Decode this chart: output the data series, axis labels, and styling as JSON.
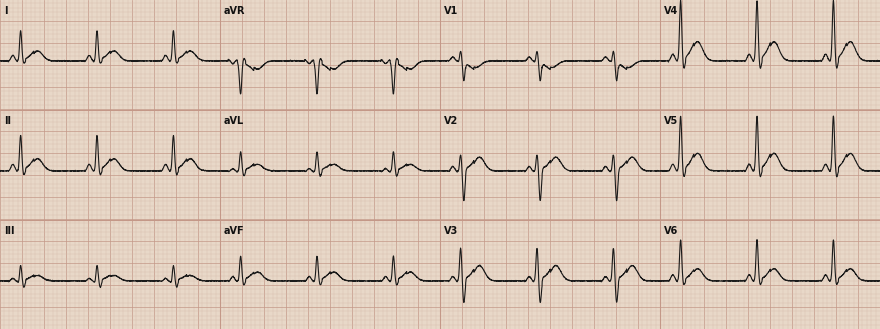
{
  "bg_color": "#e8d8c8",
  "grid_minor_color": "#d4b8a8",
  "grid_major_color": "#c49888",
  "line_color": "#1a1a1a",
  "line_width": 0.8,
  "label_fontsize": 7,
  "label_color": "#111111",
  "fig_width": 8.8,
  "fig_height": 3.29,
  "dpi": 100,
  "heart_rate": 72,
  "fs": 500,
  "n_cols": 4,
  "n_rows": 3,
  "lead_labels": [
    "I",
    "aVR",
    "V1",
    "V4",
    "II",
    "aVL",
    "V2",
    "V5",
    "III",
    "aVF",
    "V3",
    "V6"
  ],
  "lead_styles": [
    "I",
    "aVR",
    "V1",
    "V4",
    "II",
    "aVL",
    "V2",
    "V5",
    "III",
    "aVF",
    "V3",
    "V6"
  ]
}
